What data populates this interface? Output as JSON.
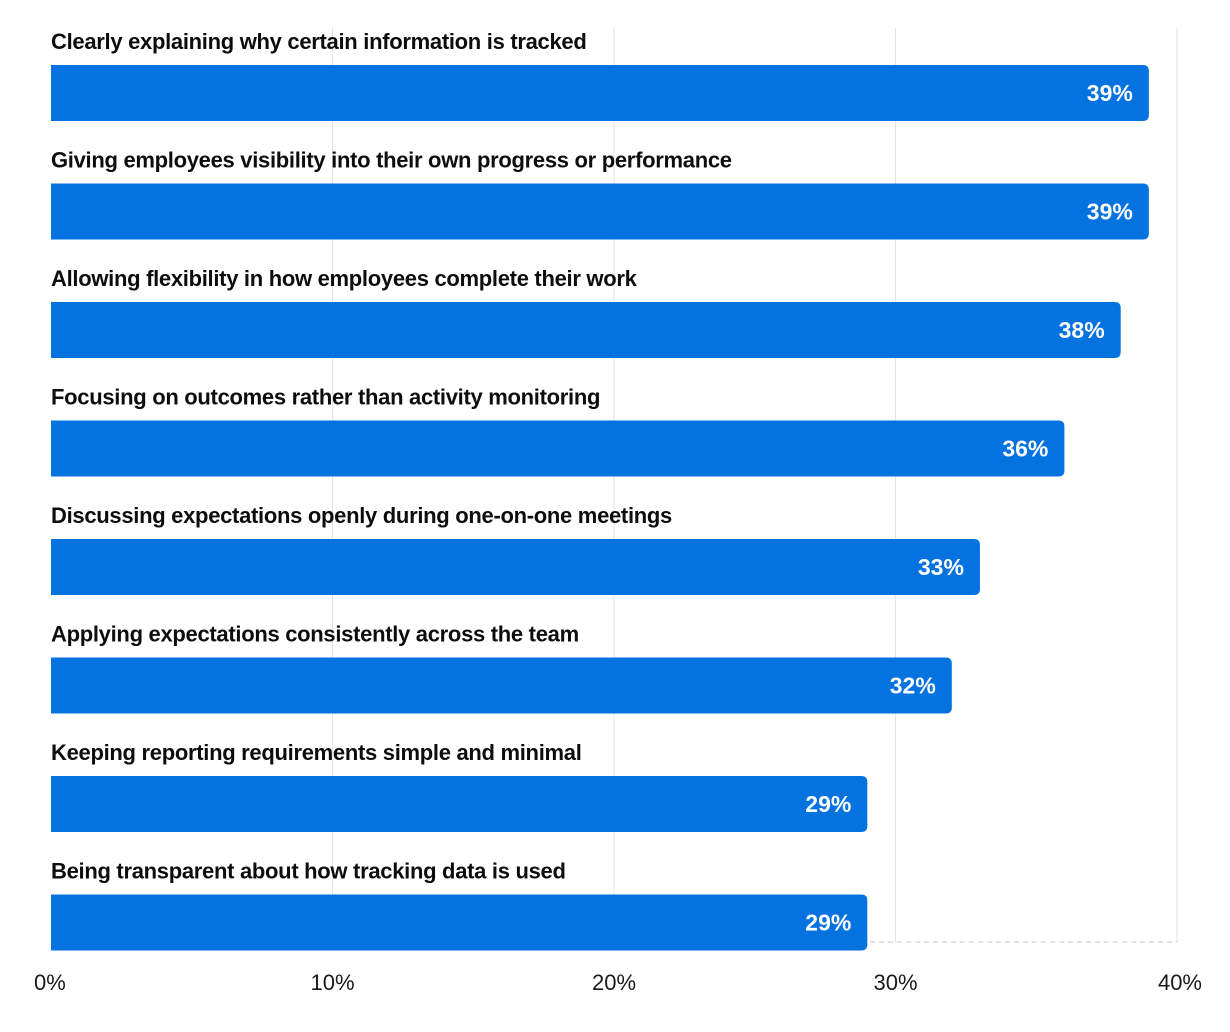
{
  "chart_data": {
    "type": "bar",
    "orientation": "horizontal",
    "categories": [
      "Clearly explaining why certain information is tracked",
      "Giving employees visibility into their own progress or performance",
      "Allowing flexibility in how employees complete their work",
      "Focusing on outcomes rather than activity monitoring",
      "Discussing expectations openly during one-on-one meetings",
      "Applying expectations consistently across the team",
      "Keeping reporting requirements simple and minimal",
      "Being transparent about how tracking data is used"
    ],
    "values": [
      39,
      39,
      38,
      36,
      33,
      32,
      29,
      29
    ],
    "value_labels": [
      "39%",
      "39%",
      "38%",
      "36%",
      "33%",
      "32%",
      "29%",
      "29%"
    ],
    "xlim": [
      0,
      40
    ],
    "ticks": [
      0,
      10,
      20,
      30,
      40
    ],
    "tick_labels": [
      "0%",
      "10%",
      "20%",
      "30%",
      "40%"
    ],
    "grid": true,
    "bar_color": "#0473e0",
    "title": "",
    "xlabel": "",
    "ylabel": ""
  }
}
